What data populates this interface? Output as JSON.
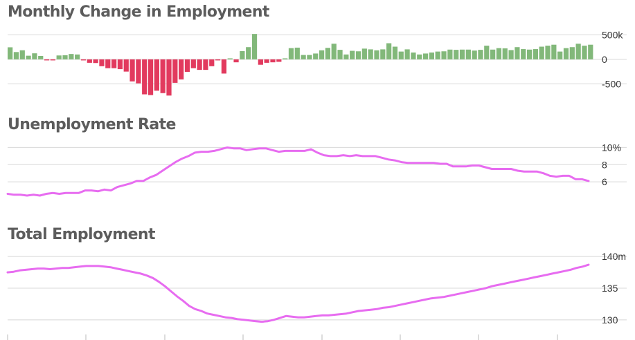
{
  "colors": {
    "positive_bar": "#82b87a",
    "negative_bar": "#e23a5e",
    "line": "#e76cf0",
    "grid": "#d8d8d8",
    "title": "#5c5c5c"
  },
  "chart_data": [
    {
      "type": "bar",
      "title": "Monthly Change in Employment",
      "y_ticks": [
        "500k",
        "0",
        "-500"
      ],
      "ylim": [
        -750,
        550
      ],
      "grid": true,
      "values": [
        247,
        150,
        186,
        75,
        124,
        70,
        -20,
        -15,
        80,
        85,
        110,
        100,
        -15,
        -70,
        -75,
        -140,
        -180,
        -180,
        -200,
        -250,
        -450,
        -490,
        -715,
        -730,
        -640,
        -690,
        -740,
        -480,
        -410,
        -255,
        -180,
        -215,
        -215,
        -140,
        -10,
        -290,
        20,
        -60,
        170,
        250,
        520,
        -110,
        -70,
        -60,
        -50,
        0,
        230,
        240,
        90,
        90,
        120,
        185,
        235,
        320,
        195,
        100,
        175,
        165,
        220,
        205,
        185,
        205,
        330,
        260,
        160,
        205,
        140,
        100,
        120,
        140,
        160,
        165,
        200,
        195,
        200,
        200,
        180,
        195,
        280,
        200,
        230,
        225,
        190,
        250,
        210,
        200,
        210,
        260,
        280,
        300,
        160,
        230,
        250,
        320,
        280,
        300
      ]
    },
    {
      "type": "line",
      "title": "Unemployment Rate",
      "y_ticks": [
        "10%",
        "8",
        "6"
      ],
      "ylim": [
        4,
        11
      ],
      "grid": true,
      "values": [
        4.6,
        4.5,
        4.5,
        4.4,
        4.5,
        4.4,
        4.6,
        4.7,
        4.6,
        4.7,
        4.7,
        4.7,
        5.0,
        5.0,
        4.9,
        5.1,
        5.0,
        5.4,
        5.6,
        5.8,
        6.1,
        6.1,
        6.5,
        6.8,
        7.3,
        7.8,
        8.3,
        8.7,
        9.0,
        9.4,
        9.5,
        9.5,
        9.6,
        9.8,
        10.0,
        9.9,
        9.9,
        9.7,
        9.8,
        9.9,
        9.9,
        9.7,
        9.5,
        9.6,
        9.6,
        9.6,
        9.6,
        9.8,
        9.4,
        9.1,
        9.0,
        9.0,
        9.1,
        9.0,
        9.1,
        9.0,
        9.0,
        9.0,
        8.8,
        8.6,
        8.5,
        8.3,
        8.2,
        8.2,
        8.2,
        8.2,
        8.2,
        8.1,
        8.1,
        7.8,
        7.8,
        7.8,
        7.9,
        7.9,
        7.7,
        7.5,
        7.5,
        7.5,
        7.5,
        7.3,
        7.2,
        7.2,
        7.2,
        7.0,
        6.7,
        6.6,
        6.7,
        6.7,
        6.3,
        6.3,
        6.1
      ]
    },
    {
      "type": "line",
      "title": "Total Employment",
      "y_ticks": [
        "140m",
        "135",
        "130"
      ],
      "ylim": [
        129,
        141
      ],
      "grid": true,
      "values": [
        137.5,
        137.6,
        137.8,
        137.9,
        138.0,
        138.1,
        138.1,
        138.0,
        138.1,
        138.2,
        138.2,
        138.3,
        138.4,
        138.5,
        138.5,
        138.5,
        138.4,
        138.3,
        138.1,
        137.9,
        137.7,
        137.5,
        137.3,
        137.0,
        136.6,
        136.0,
        135.3,
        134.5,
        133.7,
        133.0,
        132.2,
        131.7,
        131.4,
        131.0,
        130.8,
        130.6,
        130.4,
        130.3,
        130.1,
        130.0,
        129.9,
        129.8,
        129.7,
        129.8,
        130.0,
        130.3,
        130.6,
        130.5,
        130.4,
        130.4,
        130.5,
        130.6,
        130.7,
        130.7,
        130.8,
        130.9,
        131.0,
        131.2,
        131.4,
        131.5,
        131.6,
        131.7,
        131.9,
        132.0,
        132.2,
        132.4,
        132.6,
        132.8,
        133.0,
        133.2,
        133.4,
        133.5,
        133.6,
        133.8,
        134.0,
        134.2,
        134.4,
        134.6,
        134.8,
        135.0,
        135.3,
        135.5,
        135.7,
        135.9,
        136.1,
        136.3,
        136.5,
        136.7,
        136.9,
        137.1,
        137.3,
        137.5,
        137.7,
        137.9,
        138.2,
        138.4,
        138.7
      ]
    }
  ]
}
